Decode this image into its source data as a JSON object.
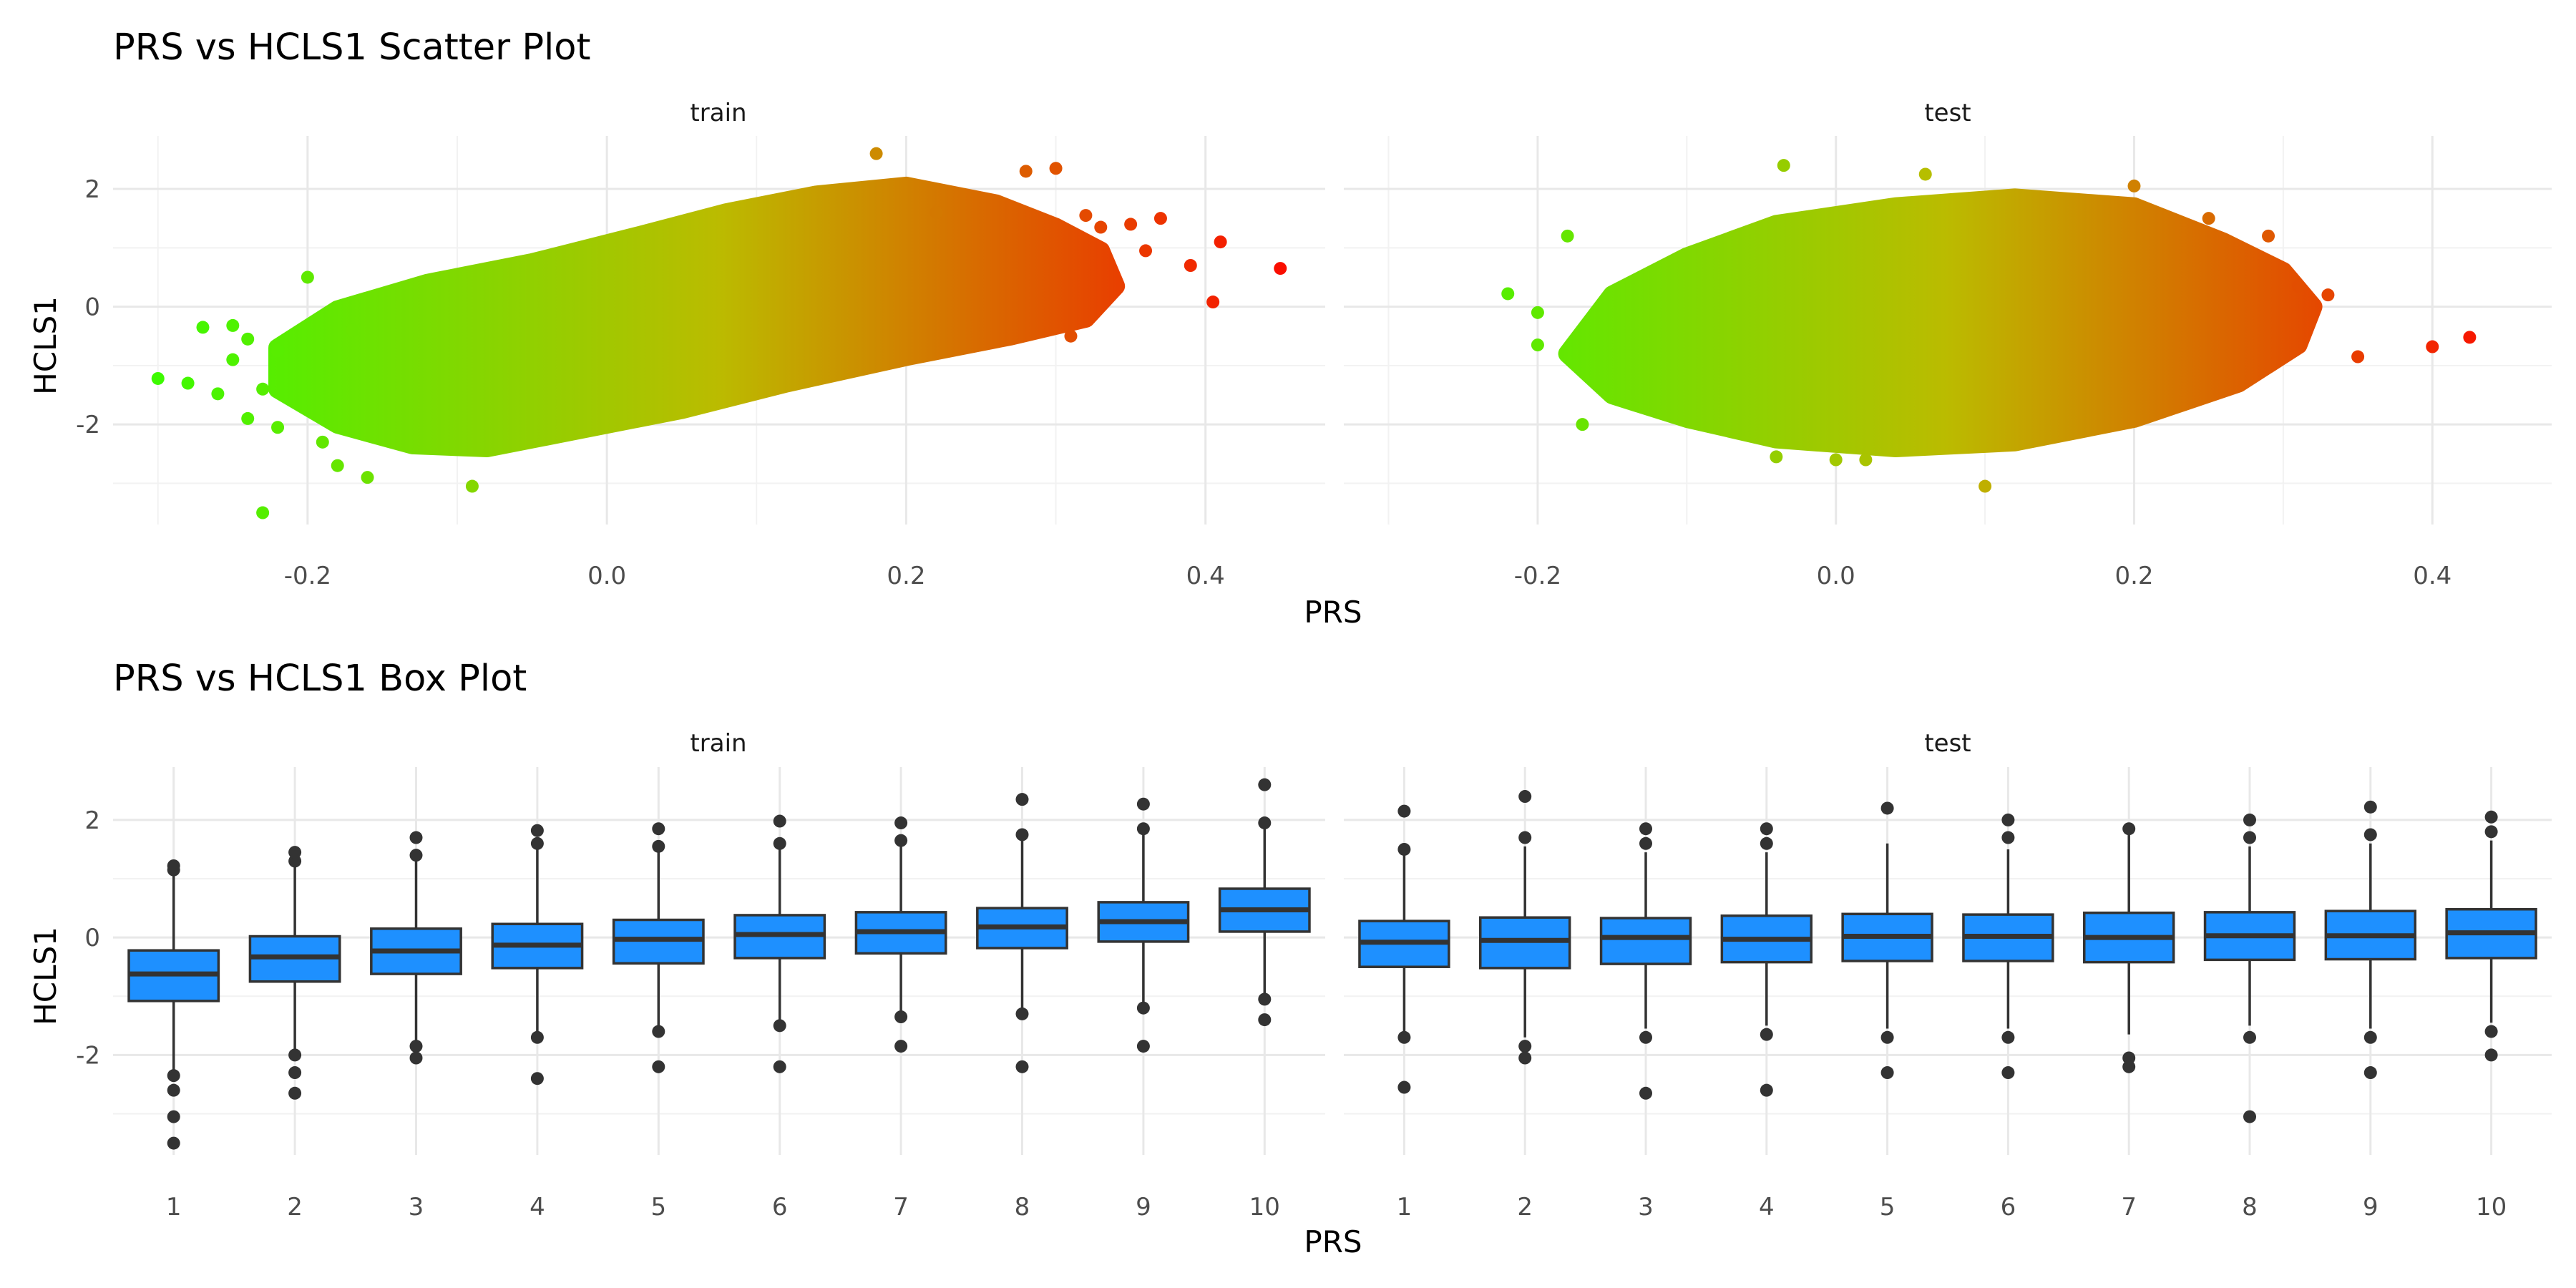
{
  "chart_data": [
    {
      "type": "scatter",
      "title": "PRS vs HCLS1 Scatter Plot",
      "xlabel": "PRS",
      "ylabel": "HCLS1",
      "xlim": [
        -0.33,
        0.48
      ],
      "ylim": [
        -3.7,
        2.9
      ],
      "x_ticks": [
        -0.2,
        0.0,
        0.2,
        0.4
      ],
      "y_ticks": [
        -2,
        0,
        2
      ],
      "grid": true,
      "color_scale": {
        "low": "#33ff00",
        "mid": "#bbbb00",
        "high": "#ff0000"
      },
      "panels": [
        {
          "name": "train",
          "points": [
            {
              "x": -0.3,
              "y": -1.22
            },
            {
              "x": -0.28,
              "y": -1.3
            },
            {
              "x": -0.27,
              "y": -0.35
            },
            {
              "x": -0.26,
              "y": -1.48
            },
            {
              "x": -0.25,
              "y": -0.9
            },
            {
              "x": -0.25,
              "y": -0.32
            },
            {
              "x": -0.24,
              "y": -0.55
            },
            {
              "x": -0.24,
              "y": -1.9
            },
            {
              "x": -0.23,
              "y": -3.5
            },
            {
              "x": -0.23,
              "y": -1.4
            },
            {
              "x": -0.22,
              "y": -0.75
            },
            {
              "x": -0.22,
              "y": -2.05
            },
            {
              "x": -0.2,
              "y": 0.5
            },
            {
              "x": -0.19,
              "y": -2.3
            },
            {
              "x": -0.18,
              "y": -2.7
            },
            {
              "x": -0.17,
              "y": -0.4
            },
            {
              "x": -0.16,
              "y": -2.9
            },
            {
              "x": -0.09,
              "y": -3.05
            },
            {
              "x": 0.18,
              "y": 2.6
            },
            {
              "x": 0.22,
              "y": 1.6
            },
            {
              "x": 0.28,
              "y": 2.3
            },
            {
              "x": 0.3,
              "y": 2.35
            },
            {
              "x": 0.31,
              "y": -0.5
            },
            {
              "x": 0.32,
              "y": 1.55
            },
            {
              "x": 0.33,
              "y": 1.35
            },
            {
              "x": 0.35,
              "y": 1.4
            },
            {
              "x": 0.36,
              "y": 0.95
            },
            {
              "x": 0.37,
              "y": 1.5
            },
            {
              "x": 0.39,
              "y": 0.7
            },
            {
              "x": 0.405,
              "y": 0.08
            },
            {
              "x": 0.41,
              "y": 1.1
            },
            {
              "x": 0.45,
              "y": 0.65
            }
          ]
        },
        {
          "name": "test",
          "points": [
            {
              "x": -0.22,
              "y": 0.22
            },
            {
              "x": -0.2,
              "y": -0.1
            },
            {
              "x": -0.2,
              "y": -0.65
            },
            {
              "x": -0.18,
              "y": 1.2
            },
            {
              "x": -0.17,
              "y": -2.0
            },
            {
              "x": -0.04,
              "y": -2.55
            },
            {
              "x": -0.035,
              "y": 2.4
            },
            {
              "x": 0.0,
              "y": -2.6
            },
            {
              "x": 0.02,
              "y": -2.6
            },
            {
              "x": 0.06,
              "y": 2.25
            },
            {
              "x": 0.1,
              "y": -3.05
            },
            {
              "x": 0.2,
              "y": 2.05
            },
            {
              "x": 0.25,
              "y": 1.5
            },
            {
              "x": 0.29,
              "y": 1.2
            },
            {
              "x": 0.31,
              "y": 0.35
            },
            {
              "x": 0.33,
              "y": 0.2
            },
            {
              "x": 0.35,
              "y": -0.85
            },
            {
              "x": 0.4,
              "y": -0.68
            },
            {
              "x": 0.425,
              "y": -0.52
            }
          ]
        }
      ]
    },
    {
      "type": "box",
      "title": "PRS vs HCLS1 Box Plot",
      "xlabel": "PRS",
      "ylabel": "HCLS1",
      "categories": [
        "1",
        "2",
        "3",
        "4",
        "5",
        "6",
        "7",
        "8",
        "9",
        "10"
      ],
      "ylim": [
        -3.7,
        2.9
      ],
      "y_ticks": [
        -2,
        0,
        2
      ],
      "fill": "#1e90ff",
      "panels": [
        {
          "name": "train",
          "boxes": [
            {
              "q1": -1.08,
              "median": -0.62,
              "q3": -0.22,
              "whisker_low": -2.3,
              "whisker_high": 1.1,
              "outliers": [
                1.15,
                1.22,
                -2.35,
                -2.6,
                -3.05,
                -3.5
              ]
            },
            {
              "q1": -0.75,
              "median": -0.33,
              "q3": 0.02,
              "whisker_low": -1.9,
              "whisker_high": 1.2,
              "outliers": [
                1.3,
                1.45,
                -2.0,
                -2.3,
                -2.65
              ]
            },
            {
              "q1": -0.62,
              "median": -0.23,
              "q3": 0.15,
              "whisker_low": -1.75,
              "whisker_high": 1.35,
              "outliers": [
                1.4,
                1.7,
                -1.85,
                -2.05
              ]
            },
            {
              "q1": -0.52,
              "median": -0.13,
              "q3": 0.23,
              "whisker_low": -1.6,
              "whisker_high": 1.5,
              "outliers": [
                1.6,
                1.82,
                -1.7,
                -2.4
              ]
            },
            {
              "q1": -0.44,
              "median": -0.03,
              "q3": 0.3,
              "whisker_low": -1.5,
              "whisker_high": 1.45,
              "outliers": [
                1.55,
                1.85,
                -1.6,
                -2.2
              ]
            },
            {
              "q1": -0.35,
              "median": 0.05,
              "q3": 0.38,
              "whisker_low": -1.4,
              "whisker_high": 1.5,
              "outliers": [
                1.6,
                1.98,
                -1.5,
                -2.2
              ]
            },
            {
              "q1": -0.27,
              "median": 0.1,
              "q3": 0.43,
              "whisker_low": -1.3,
              "whisker_high": 1.55,
              "outliers": [
                1.65,
                1.95,
                -1.35,
                -1.85
              ]
            },
            {
              "q1": -0.18,
              "median": 0.18,
              "q3": 0.5,
              "whisker_low": -1.2,
              "whisker_high": 1.65,
              "outliers": [
                1.75,
                2.35,
                -1.3,
                -2.2
              ]
            },
            {
              "q1": -0.07,
              "median": 0.27,
              "q3": 0.6,
              "whisker_low": -1.1,
              "whisker_high": 1.75,
              "outliers": [
                1.85,
                2.27,
                -1.2,
                -1.85
              ]
            },
            {
              "q1": 0.1,
              "median": 0.47,
              "q3": 0.83,
              "whisker_low": -0.95,
              "whisker_high": 1.85,
              "outliers": [
                1.95,
                2.6,
                -1.05,
                -1.4
              ]
            }
          ]
        },
        {
          "name": "test",
          "boxes": [
            {
              "q1": -0.5,
              "median": -0.08,
              "q3": 0.28,
              "whisker_low": -1.6,
              "whisker_high": 1.4,
              "outliers": [
                1.5,
                2.15,
                -1.7,
                -2.55
              ]
            },
            {
              "q1": -0.52,
              "median": -0.05,
              "q3": 0.34,
              "whisker_low": -1.7,
              "whisker_high": 1.55,
              "outliers": [
                1.7,
                2.4,
                -1.85,
                -2.05
              ]
            },
            {
              "q1": -0.45,
              "median": 0.0,
              "q3": 0.33,
              "whisker_low": -1.55,
              "whisker_high": 1.45,
              "outliers": [
                1.6,
                1.85,
                -1.7,
                -2.65
              ]
            },
            {
              "q1": -0.42,
              "median": -0.03,
              "q3": 0.37,
              "whisker_low": -1.5,
              "whisker_high": 1.45,
              "outliers": [
                1.6,
                1.85,
                -1.65,
                -2.6
              ]
            },
            {
              "q1": -0.4,
              "median": 0.02,
              "q3": 0.4,
              "whisker_low": -1.55,
              "whisker_high": 1.6,
              "outliers": [
                2.2,
                -1.7,
                -2.3
              ]
            },
            {
              "q1": -0.4,
              "median": 0.02,
              "q3": 0.39,
              "whisker_low": -1.55,
              "whisker_high": 1.5,
              "outliers": [
                1.7,
                2.0,
                -1.7,
                -2.3
              ]
            },
            {
              "q1": -0.42,
              "median": 0.0,
              "q3": 0.42,
              "whisker_low": -1.65,
              "whisker_high": 1.75,
              "outliers": [
                1.85,
                -2.05,
                -2.2
              ]
            },
            {
              "q1": -0.38,
              "median": 0.03,
              "q3": 0.43,
              "whisker_low": -1.5,
              "whisker_high": 1.55,
              "outliers": [
                1.7,
                2.0,
                -1.7,
                -3.05
              ]
            },
            {
              "q1": -0.37,
              "median": 0.03,
              "q3": 0.45,
              "whisker_low": -1.55,
              "whisker_high": 1.6,
              "outliers": [
                1.75,
                2.22,
                -1.7,
                -2.3
              ]
            },
            {
              "q1": -0.35,
              "median": 0.08,
              "q3": 0.48,
              "whisker_low": -1.45,
              "whisker_high": 1.65,
              "outliers": [
                1.8,
                2.05,
                -1.6,
                -2.0
              ]
            }
          ]
        }
      ]
    }
  ]
}
